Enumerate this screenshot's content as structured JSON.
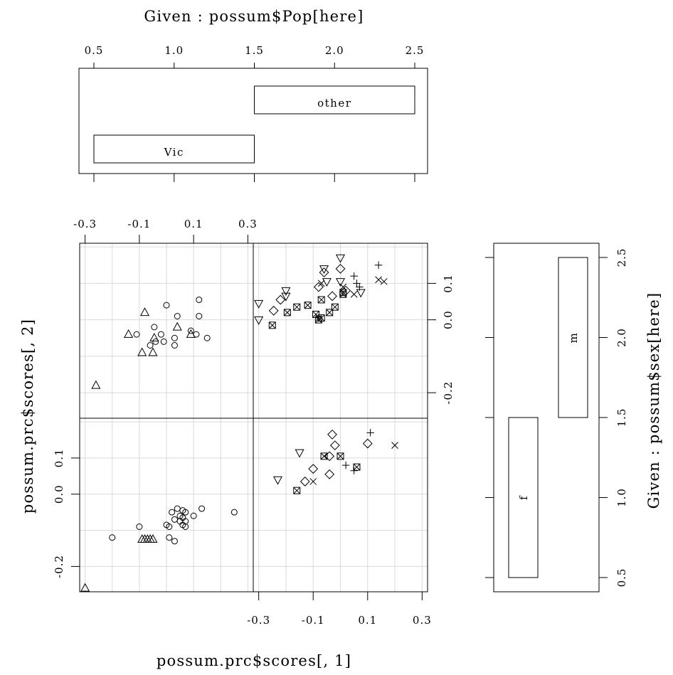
{
  "chart_data": {
    "type": "scatter",
    "title": "",
    "xlabel": "possum.prc$scores[, 1]",
    "ylabel": "possum.prc$scores[, 2]",
    "xlim": [
      -0.32,
      0.32
    ],
    "ylim": [
      -0.27,
      0.21
    ],
    "x_ticks": [
      "-0.3",
      "-0.1",
      "0.1",
      "0.3"
    ],
    "y_ticks": [
      "-0.2",
      "0.0",
      "0.1"
    ],
    "grid": true,
    "legend": "none",
    "symbols_by_group": [
      "circle",
      "triangle",
      "plus",
      "x",
      "diamond",
      "down-triangle",
      "boxed-x"
    ],
    "given_pop": {
      "label": "Given : possum$Pop[here]",
      "axis_ticks": [
        "0.5",
        "1.0",
        "1.5",
        "2.0",
        "2.5"
      ],
      "range": [
        0.5,
        2.5
      ],
      "levels": [
        {
          "name": "Vic",
          "from": 0.5,
          "to": 1.5
        },
        {
          "name": "other",
          "from": 1.5,
          "to": 2.5
        }
      ]
    },
    "given_sex": {
      "label": "Given : possum$sex[here]",
      "axis_ticks": [
        "0.5",
        "1.0",
        "1.5",
        "2.0",
        "2.5"
      ],
      "range": [
        0.5,
        2.5
      ],
      "levels": [
        {
          "name": "f",
          "from": 0.5,
          "to": 1.5
        },
        {
          "name": "m",
          "from": 1.5,
          "to": 2.5
        }
      ]
    },
    "panels": [
      {
        "pop": "Vic",
        "sex": "m",
        "points": [
          {
            "x": -0.26,
            "y": -0.18,
            "pch": "triangle"
          },
          {
            "x": -0.14,
            "y": -0.04,
            "pch": "triangle"
          },
          {
            "x": -0.11,
            "y": -0.04,
            "pch": "circle"
          },
          {
            "x": -0.09,
            "y": -0.09,
            "pch": "triangle"
          },
          {
            "x": -0.08,
            "y": 0.02,
            "pch": "triangle"
          },
          {
            "x": -0.06,
            "y": -0.07,
            "pch": "circle"
          },
          {
            "x": -0.05,
            "y": -0.09,
            "pch": "triangle"
          },
          {
            "x": -0.045,
            "y": -0.05,
            "pch": "triangle"
          },
          {
            "x": -0.04,
            "y": -0.06,
            "pch": "circle"
          },
          {
            "x": -0.045,
            "y": -0.02,
            "pch": "circle"
          },
          {
            "x": -0.02,
            "y": -0.04,
            "pch": "circle"
          },
          {
            "x": -0.01,
            "y": -0.06,
            "pch": "circle"
          },
          {
            "x": 0.0,
            "y": 0.04,
            "pch": "circle"
          },
          {
            "x": 0.03,
            "y": -0.07,
            "pch": "circle"
          },
          {
            "x": 0.03,
            "y": -0.05,
            "pch": "circle"
          },
          {
            "x": 0.04,
            "y": 0.01,
            "pch": "circle"
          },
          {
            "x": 0.04,
            "y": -0.02,
            "pch": "triangle"
          },
          {
            "x": 0.09,
            "y": -0.03,
            "pch": "circle"
          },
          {
            "x": 0.09,
            "y": -0.04,
            "pch": "triangle"
          },
          {
            "x": 0.11,
            "y": -0.04,
            "pch": "circle"
          },
          {
            "x": 0.12,
            "y": 0.055,
            "pch": "circle"
          },
          {
            "x": 0.12,
            "y": 0.01,
            "pch": "circle"
          },
          {
            "x": 0.15,
            "y": -0.05,
            "pch": "circle"
          }
        ]
      },
      {
        "pop": "other",
        "sex": "m",
        "points": [
          {
            "x": -0.3,
            "y": 0.045,
            "pch": "down-triangle"
          },
          {
            "x": -0.3,
            "y": 0.0,
            "pch": "down-triangle"
          },
          {
            "x": -0.25,
            "y": -0.015,
            "pch": "boxed-x"
          },
          {
            "x": -0.245,
            "y": 0.025,
            "pch": "diamond"
          },
          {
            "x": -0.22,
            "y": 0.055,
            "pch": "diamond"
          },
          {
            "x": -0.2,
            "y": 0.08,
            "pch": "down-triangle"
          },
          {
            "x": -0.2,
            "y": 0.065,
            "pch": "down-triangle"
          },
          {
            "x": -0.195,
            "y": 0.02,
            "pch": "boxed-x"
          },
          {
            "x": -0.16,
            "y": 0.035,
            "pch": "boxed-x"
          },
          {
            "x": -0.12,
            "y": 0.04,
            "pch": "boxed-x"
          },
          {
            "x": -0.09,
            "y": 0.015,
            "pch": "boxed-x"
          },
          {
            "x": -0.08,
            "y": 0.005,
            "pch": "x"
          },
          {
            "x": -0.08,
            "y": 0.0,
            "pch": "boxed-x"
          },
          {
            "x": -0.07,
            "y": 0.005,
            "pch": "boxed-x"
          },
          {
            "x": -0.07,
            "y": 0.055,
            "pch": "boxed-x"
          },
          {
            "x": -0.08,
            "y": 0.09,
            "pch": "diamond"
          },
          {
            "x": -0.07,
            "y": 0.1,
            "pch": "x"
          },
          {
            "x": -0.06,
            "y": 0.13,
            "pch": "diamond"
          },
          {
            "x": -0.06,
            "y": 0.14,
            "pch": "down-triangle"
          },
          {
            "x": -0.05,
            "y": 0.105,
            "pch": "down-triangle"
          },
          {
            "x": -0.04,
            "y": 0.02,
            "pch": "boxed-x"
          },
          {
            "x": -0.03,
            "y": 0.065,
            "pch": "diamond"
          },
          {
            "x": -0.02,
            "y": 0.035,
            "pch": "boxed-x"
          },
          {
            "x": 0.0,
            "y": 0.14,
            "pch": "diamond"
          },
          {
            "x": 0.0,
            "y": 0.17,
            "pch": "down-triangle"
          },
          {
            "x": 0.0,
            "y": 0.105,
            "pch": "down-triangle"
          },
          {
            "x": 0.01,
            "y": 0.09,
            "pch": "x"
          },
          {
            "x": 0.01,
            "y": 0.07,
            "pch": "boxed-x"
          },
          {
            "x": 0.01,
            "y": 0.075,
            "pch": "boxed-x"
          },
          {
            "x": 0.02,
            "y": 0.08,
            "pch": "diamond"
          },
          {
            "x": 0.05,
            "y": 0.07,
            "pch": "x"
          },
          {
            "x": 0.05,
            "y": 0.12,
            "pch": "plus"
          },
          {
            "x": 0.06,
            "y": 0.1,
            "pch": "plus"
          },
          {
            "x": 0.07,
            "y": 0.09,
            "pch": "plus"
          },
          {
            "x": 0.075,
            "y": 0.075,
            "pch": "down-triangle"
          },
          {
            "x": 0.14,
            "y": 0.15,
            "pch": "plus"
          },
          {
            "x": 0.14,
            "y": 0.11,
            "pch": "x"
          },
          {
            "x": 0.16,
            "y": 0.105,
            "pch": "x"
          }
        ]
      },
      {
        "pop": "Vic",
        "sex": "f",
        "points": [
          {
            "x": -0.3,
            "y": -0.26,
            "pch": "triangle"
          },
          {
            "x": -0.2,
            "y": -0.12,
            "pch": "circle"
          },
          {
            "x": -0.1,
            "y": -0.09,
            "pch": "circle"
          },
          {
            "x": -0.09,
            "y": -0.125,
            "pch": "triangle"
          },
          {
            "x": -0.08,
            "y": -0.125,
            "pch": "triangle"
          },
          {
            "x": -0.07,
            "y": -0.125,
            "pch": "triangle"
          },
          {
            "x": -0.06,
            "y": -0.125,
            "pch": "triangle"
          },
          {
            "x": -0.05,
            "y": -0.125,
            "pch": "triangle"
          },
          {
            "x": 0.0,
            "y": -0.085,
            "pch": "circle"
          },
          {
            "x": 0.01,
            "y": -0.09,
            "pch": "circle"
          },
          {
            "x": 0.01,
            "y": -0.12,
            "pch": "circle"
          },
          {
            "x": 0.02,
            "y": -0.05,
            "pch": "circle"
          },
          {
            "x": 0.03,
            "y": -0.13,
            "pch": "circle"
          },
          {
            "x": 0.03,
            "y": -0.07,
            "pch": "circle"
          },
          {
            "x": 0.04,
            "y": -0.04,
            "pch": "circle"
          },
          {
            "x": 0.05,
            "y": -0.06,
            "pch": "circle"
          },
          {
            "x": 0.05,
            "y": -0.075,
            "pch": "circle"
          },
          {
            "x": 0.06,
            "y": -0.045,
            "pch": "circle"
          },
          {
            "x": 0.06,
            "y": -0.065,
            "pch": "circle"
          },
          {
            "x": 0.06,
            "y": -0.085,
            "pch": "circle"
          },
          {
            "x": 0.07,
            "y": -0.05,
            "pch": "circle"
          },
          {
            "x": 0.07,
            "y": -0.075,
            "pch": "circle"
          },
          {
            "x": 0.07,
            "y": -0.09,
            "pch": "circle"
          },
          {
            "x": 0.1,
            "y": -0.06,
            "pch": "circle"
          },
          {
            "x": 0.13,
            "y": -0.04,
            "pch": "circle"
          },
          {
            "x": 0.25,
            "y": -0.05,
            "pch": "circle"
          }
        ]
      },
      {
        "pop": "other",
        "sex": "f",
        "points": [
          {
            "x": -0.23,
            "y": 0.04,
            "pch": "down-triangle"
          },
          {
            "x": -0.16,
            "y": 0.01,
            "pch": "boxed-x"
          },
          {
            "x": -0.15,
            "y": 0.115,
            "pch": "down-triangle"
          },
          {
            "x": -0.13,
            "y": 0.035,
            "pch": "diamond"
          },
          {
            "x": -0.1,
            "y": 0.035,
            "pch": "x"
          },
          {
            "x": -0.1,
            "y": 0.07,
            "pch": "diamond"
          },
          {
            "x": -0.06,
            "y": 0.105,
            "pch": "boxed-x"
          },
          {
            "x": -0.04,
            "y": 0.055,
            "pch": "diamond"
          },
          {
            "x": -0.04,
            "y": 0.105,
            "pch": "diamond"
          },
          {
            "x": -0.03,
            "y": 0.165,
            "pch": "diamond"
          },
          {
            "x": -0.02,
            "y": 0.135,
            "pch": "diamond"
          },
          {
            "x": 0.0,
            "y": 0.105,
            "pch": "boxed-x"
          },
          {
            "x": 0.02,
            "y": 0.08,
            "pch": "plus"
          },
          {
            "x": 0.05,
            "y": 0.065,
            "pch": "plus"
          },
          {
            "x": 0.06,
            "y": 0.075,
            "pch": "boxed-x"
          },
          {
            "x": 0.1,
            "y": 0.14,
            "pch": "diamond"
          },
          {
            "x": 0.11,
            "y": 0.17,
            "pch": "plus"
          },
          {
            "x": 0.2,
            "y": 0.135,
            "pch": "x"
          }
        ]
      }
    ]
  }
}
